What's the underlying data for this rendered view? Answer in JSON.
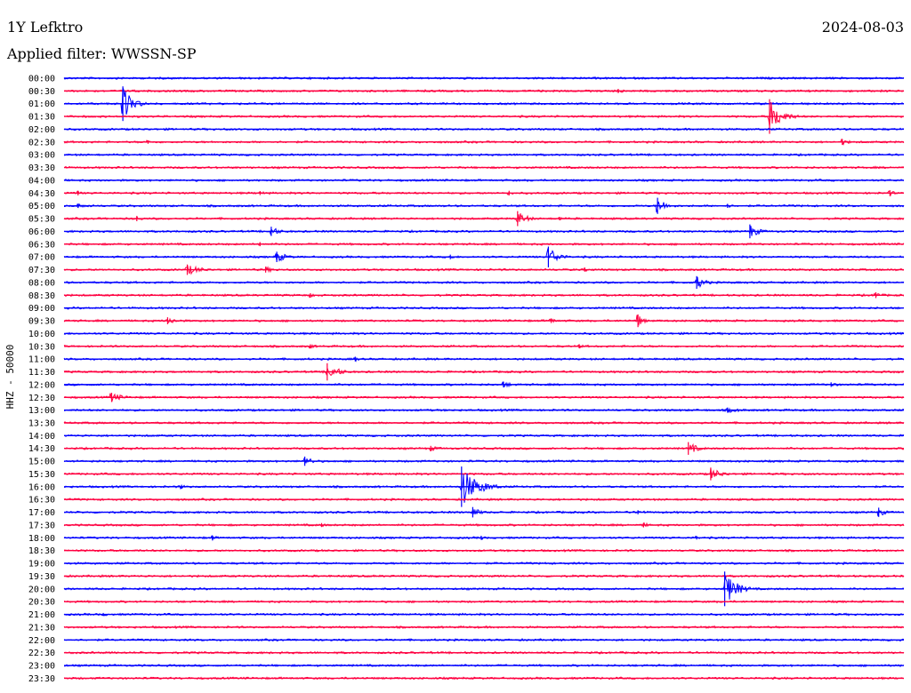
{
  "header": {
    "station": "1Y Lefktro",
    "date": "2024-08-03",
    "filter_prefix": "Applied filter:",
    "filter_name": "WWSSN-SP"
  },
  "chart_data": {
    "type": "line",
    "title": "",
    "ylabel": "HHZ - 50000",
    "xlabel": "",
    "y_tick_labels": [
      "00:00",
      "00:30",
      "01:00",
      "01:30",
      "02:00",
      "02:30",
      "03:00",
      "03:30",
      "04:00",
      "04:30",
      "05:00",
      "05:30",
      "06:00",
      "06:30",
      "07:00",
      "07:30",
      "08:00",
      "08:30",
      "09:00",
      "09:30",
      "10:00",
      "10:30",
      "11:00",
      "11:30",
      "12:00",
      "12:30",
      "13:00",
      "13:30",
      "14:00",
      "14:30",
      "15:00",
      "15:30",
      "16:00",
      "16:30",
      "17:00",
      "17:30",
      "18:00",
      "18:30",
      "19:00",
      "19:30",
      "20:00",
      "20:30",
      "21:00",
      "21:30",
      "22:00",
      "22:30",
      "23:00",
      "23:30"
    ],
    "trace_colors": [
      "#0000ff",
      "#ff0040"
    ],
    "grid": false,
    "events": [
      {
        "trace": "00:30",
        "offset_min": 19.8,
        "amp": 0.35,
        "dur_min": 1.2
      },
      {
        "trace": "01:00",
        "offset_min": 2.1,
        "amp": 3.0,
        "dur_min": 1.0
      },
      {
        "trace": "01:30",
        "offset_min": 25.2,
        "amp": 3.0,
        "dur_min": 1.2
      },
      {
        "trace": "02:30",
        "offset_min": 3.0,
        "amp": 0.3,
        "dur_min": 1.0
      },
      {
        "trace": "02:30",
        "offset_min": 27.8,
        "amp": 0.5,
        "dur_min": 1.0
      },
      {
        "trace": "04:30",
        "offset_min": 0.5,
        "amp": 0.4,
        "dur_min": 0.6
      },
      {
        "trace": "04:30",
        "offset_min": 7.0,
        "amp": 0.35,
        "dur_min": 0.8
      },
      {
        "trace": "04:30",
        "offset_min": 15.9,
        "amp": 0.4,
        "dur_min": 0.4
      },
      {
        "trace": "04:30",
        "offset_min": 29.5,
        "amp": 0.5,
        "dur_min": 0.6
      },
      {
        "trace": "05:00",
        "offset_min": 0.5,
        "amp": 0.35,
        "dur_min": 2.0
      },
      {
        "trace": "05:00",
        "offset_min": 21.2,
        "amp": 1.4,
        "dur_min": 1.0
      },
      {
        "trace": "05:00",
        "offset_min": 23.7,
        "amp": 0.35,
        "dur_min": 0.6
      },
      {
        "trace": "05:30",
        "offset_min": 2.6,
        "amp": 0.45,
        "dur_min": 0.8
      },
      {
        "trace": "05:30",
        "offset_min": 16.2,
        "amp": 1.3,
        "dur_min": 1.0
      },
      {
        "trace": "05:30",
        "offset_min": 17.7,
        "amp": 0.3,
        "dur_min": 0.6
      },
      {
        "trace": "06:00",
        "offset_min": 7.4,
        "amp": 0.8,
        "dur_min": 1.0
      },
      {
        "trace": "06:00",
        "offset_min": 24.5,
        "amp": 1.2,
        "dur_min": 1.0
      },
      {
        "trace": "06:30",
        "offset_min": 7.0,
        "amp": 0.35,
        "dur_min": 0.8
      },
      {
        "trace": "07:00",
        "offset_min": 7.6,
        "amp": 0.9,
        "dur_min": 1.2
      },
      {
        "trace": "07:00",
        "offset_min": 13.8,
        "amp": 0.4,
        "dur_min": 0.6
      },
      {
        "trace": "07:00",
        "offset_min": 17.3,
        "amp": 1.8,
        "dur_min": 1.0
      },
      {
        "trace": "07:30",
        "offset_min": 4.4,
        "amp": 0.9,
        "dur_min": 1.6
      },
      {
        "trace": "07:30",
        "offset_min": 7.2,
        "amp": 0.5,
        "dur_min": 1.2
      },
      {
        "trace": "07:30",
        "offset_min": 18.6,
        "amp": 0.35,
        "dur_min": 0.6
      },
      {
        "trace": "08:00",
        "offset_min": 22.6,
        "amp": 1.1,
        "dur_min": 1.0
      },
      {
        "trace": "08:30",
        "offset_min": 8.8,
        "amp": 0.35,
        "dur_min": 1.2
      },
      {
        "trace": "08:30",
        "offset_min": 29.0,
        "amp": 0.5,
        "dur_min": 0.8
      },
      {
        "trace": "09:30",
        "offset_min": 3.7,
        "amp": 0.6,
        "dur_min": 1.2
      },
      {
        "trace": "09:30",
        "offset_min": 17.4,
        "amp": 0.4,
        "dur_min": 0.8
      },
      {
        "trace": "09:30",
        "offset_min": 20.5,
        "amp": 1.1,
        "dur_min": 0.6
      },
      {
        "trace": "10:30",
        "offset_min": 8.8,
        "amp": 0.35,
        "dur_min": 1.0
      },
      {
        "trace": "10:30",
        "offset_min": 18.4,
        "amp": 0.35,
        "dur_min": 0.6
      },
      {
        "trace": "11:00",
        "offset_min": 10.4,
        "amp": 0.4,
        "dur_min": 0.6
      },
      {
        "trace": "11:30",
        "offset_min": 9.4,
        "amp": 1.5,
        "dur_min": 1.2
      },
      {
        "trace": "12:00",
        "offset_min": 15.7,
        "amp": 0.5,
        "dur_min": 1.2
      },
      {
        "trace": "12:00",
        "offset_min": 27.4,
        "amp": 0.4,
        "dur_min": 1.0
      },
      {
        "trace": "12:30",
        "offset_min": 1.7,
        "amp": 0.8,
        "dur_min": 1.4
      },
      {
        "trace": "13:00",
        "offset_min": 23.7,
        "amp": 0.45,
        "dur_min": 1.8
      },
      {
        "trace": "14:30",
        "offset_min": 13.1,
        "amp": 0.45,
        "dur_min": 1.2
      },
      {
        "trace": "14:30",
        "offset_min": 22.3,
        "amp": 1.1,
        "dur_min": 1.0
      },
      {
        "trace": "15:00",
        "offset_min": 8.6,
        "amp": 0.8,
        "dur_min": 1.0
      },
      {
        "trace": "15:30",
        "offset_min": 23.1,
        "amp": 1.1,
        "dur_min": 1.2
      },
      {
        "trace": "16:00",
        "offset_min": 14.2,
        "amp": 3.5,
        "dur_min": 1.6
      },
      {
        "trace": "16:00",
        "offset_min": 4.2,
        "amp": 0.35,
        "dur_min": 0.6
      },
      {
        "trace": "17:00",
        "offset_min": 14.6,
        "amp": 0.9,
        "dur_min": 0.8
      },
      {
        "trace": "17:00",
        "offset_min": 20.5,
        "amp": 0.35,
        "dur_min": 1.6
      },
      {
        "trace": "17:00",
        "offset_min": 29.1,
        "amp": 0.8,
        "dur_min": 0.8
      },
      {
        "trace": "17:30",
        "offset_min": 9.2,
        "amp": 0.35,
        "dur_min": 0.6
      },
      {
        "trace": "17:30",
        "offset_min": 20.7,
        "amp": 0.4,
        "dur_min": 0.8
      },
      {
        "trace": "18:00",
        "offset_min": 5.3,
        "amp": 0.4,
        "dur_min": 0.8
      },
      {
        "trace": "18:00",
        "offset_min": 14.9,
        "amp": 0.35,
        "dur_min": 0.6
      },
      {
        "trace": "18:00",
        "offset_min": 22.6,
        "amp": 0.3,
        "dur_min": 0.6
      },
      {
        "trace": "20:00",
        "offset_min": 23.6,
        "amp": 3.0,
        "dur_min": 1.2
      },
      {
        "trace": "21:00",
        "offset_min": 1.4,
        "amp": 0.25,
        "dur_min": 1.6
      }
    ]
  }
}
